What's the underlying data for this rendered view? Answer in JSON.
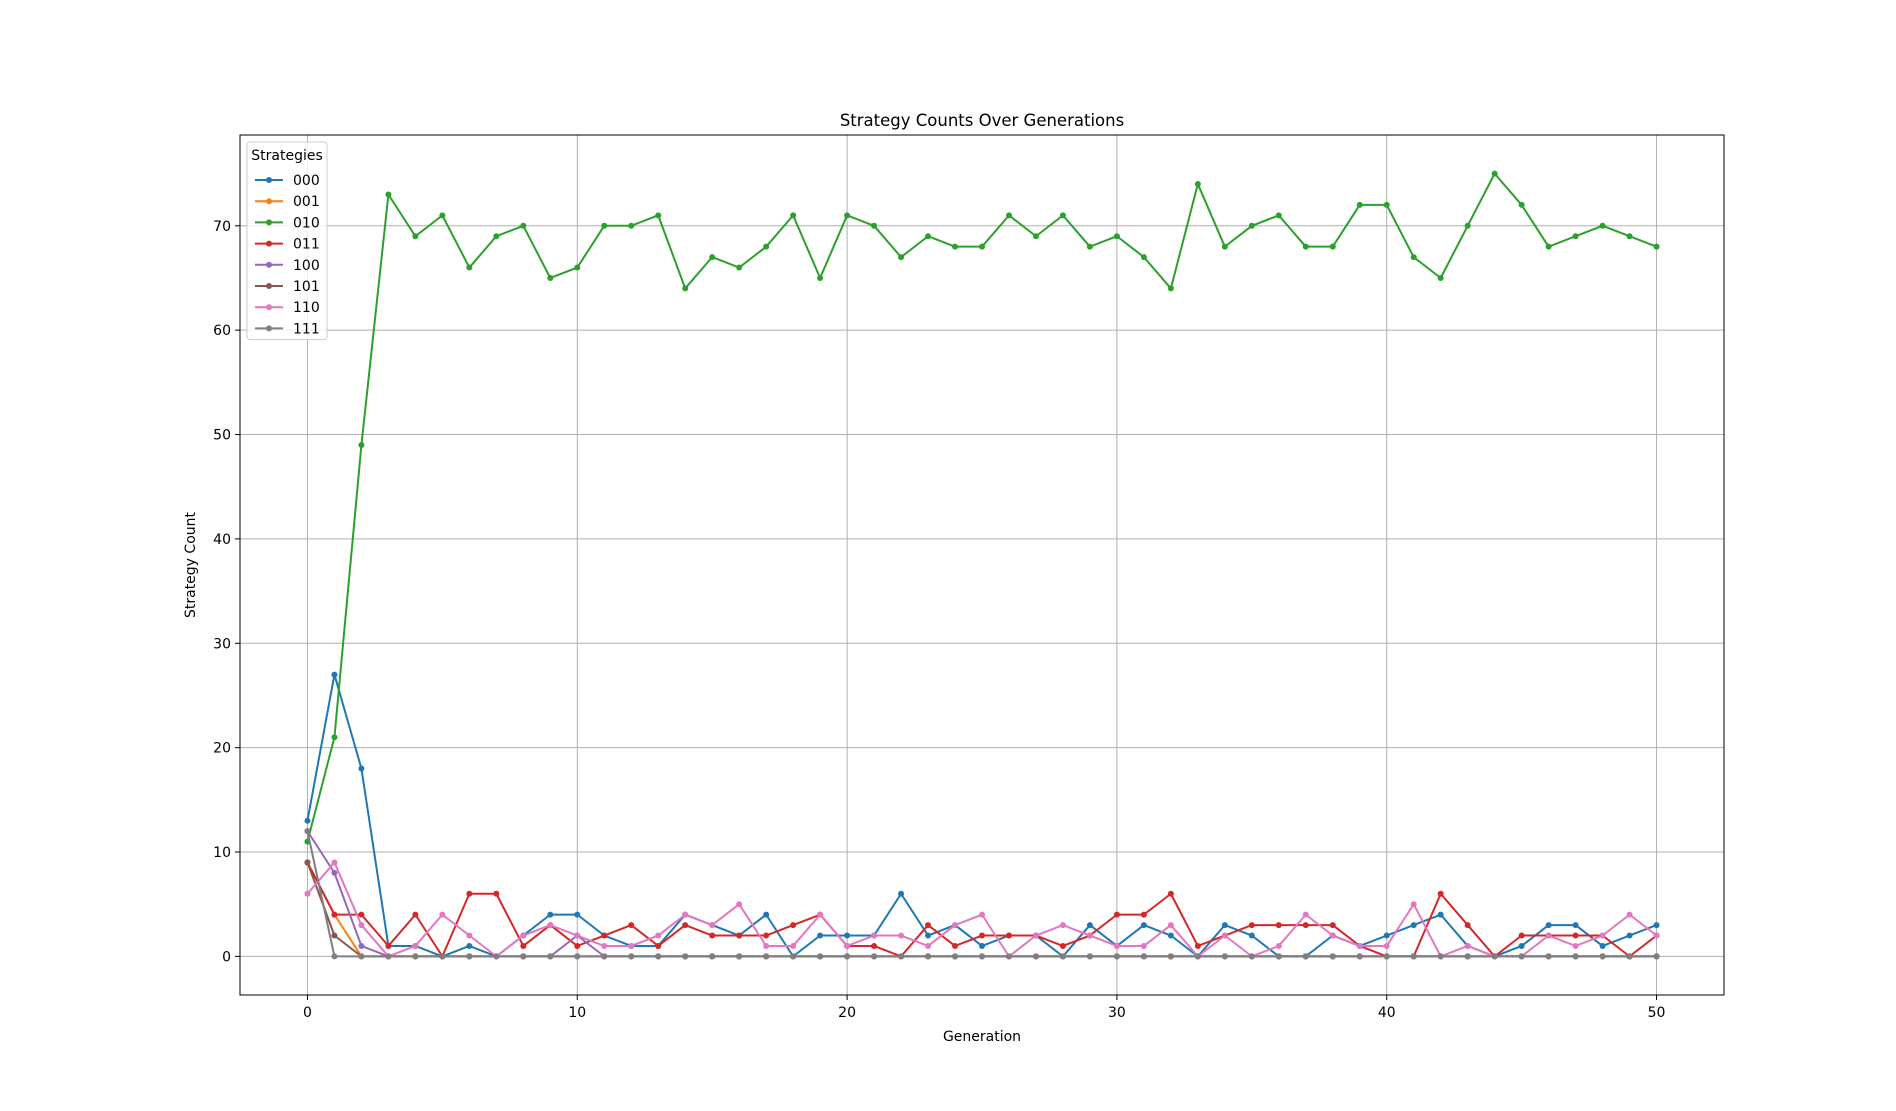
{
  "chart_data": {
    "type": "line",
    "title": "Strategy Counts Over Generations",
    "xlabel": "Generation",
    "ylabel": "Strategy Count",
    "xlim": [
      -2.5,
      52.5
    ],
    "ylim": [
      -3.7,
      78.7
    ],
    "xticks": [
      0,
      10,
      20,
      30,
      40,
      50
    ],
    "yticks": [
      0,
      10,
      20,
      30,
      40,
      50,
      60,
      70
    ],
    "grid": true,
    "legend": {
      "title": "Strategies",
      "placement": "top-left"
    },
    "x": [
      0,
      1,
      2,
      3,
      4,
      5,
      6,
      7,
      8,
      9,
      10,
      11,
      12,
      13,
      14,
      15,
      16,
      17,
      18,
      19,
      20,
      21,
      22,
      23,
      24,
      25,
      26,
      27,
      28,
      29,
      30,
      31,
      32,
      33,
      34,
      35,
      36,
      37,
      38,
      39,
      40,
      41,
      42,
      43,
      44,
      45,
      46,
      47,
      48,
      49,
      50
    ],
    "series": [
      {
        "name": "000",
        "color": "#1f77b4",
        "values": [
          13,
          27,
          18,
          1,
          1,
          0,
          1,
          0,
          2,
          4,
          4,
          2,
          1,
          1,
          4,
          3,
          2,
          4,
          0,
          2,
          2,
          2,
          6,
          2,
          3,
          1,
          2,
          2,
          0,
          3,
          1,
          3,
          2,
          0,
          3,
          2,
          0,
          0,
          2,
          1,
          2,
          3,
          4,
          1,
          0,
          1,
          3,
          3,
          1,
          2,
          3
        ]
      },
      {
        "name": "001",
        "color": "#ff7f0e",
        "values": [
          9,
          4,
          0,
          0,
          0,
          0,
          0,
          0,
          0,
          0,
          0,
          0,
          0,
          0,
          0,
          0,
          0,
          0,
          0,
          0,
          0,
          0,
          0,
          0,
          0,
          0,
          0,
          0,
          0,
          0,
          0,
          0,
          0,
          0,
          0,
          0,
          0,
          0,
          0,
          0,
          0,
          0,
          0,
          0,
          0,
          0,
          0,
          0,
          0,
          0,
          0
        ]
      },
      {
        "name": "010",
        "color": "#2ca02c",
        "values": [
          11,
          21,
          49,
          73,
          69,
          71,
          66,
          69,
          70,
          65,
          66,
          70,
          70,
          71,
          64,
          67,
          66,
          68,
          71,
          65,
          71,
          70,
          67,
          69,
          68,
          68,
          71,
          69,
          71,
          68,
          69,
          67,
          64,
          74,
          68,
          70,
          71,
          68,
          68,
          72,
          72,
          67,
          65,
          70,
          75,
          72,
          68,
          69,
          70,
          69,
          68
        ]
      },
      {
        "name": "011",
        "color": "#d62728",
        "values": [
          9,
          4,
          4,
          1,
          4,
          0,
          6,
          6,
          1,
          3,
          1,
          2,
          3,
          1,
          3,
          2,
          2,
          2,
          3,
          4,
          1,
          1,
          0,
          3,
          1,
          2,
          2,
          2,
          1,
          2,
          4,
          4,
          6,
          1,
          2,
          3,
          3,
          3,
          3,
          1,
          0,
          0,
          6,
          3,
          0,
          2,
          2,
          2,
          2,
          0,
          2
        ]
      },
      {
        "name": "100",
        "color": "#9467bd",
        "values": [
          12,
          8,
          1,
          0,
          0,
          0,
          0,
          0,
          0,
          0,
          2,
          0,
          0,
          0,
          0,
          0,
          0,
          0,
          0,
          0,
          0,
          0,
          0,
          0,
          0,
          0,
          0,
          0,
          0,
          0,
          0,
          0,
          0,
          0,
          0,
          0,
          0,
          0,
          0,
          0,
          0,
          0,
          0,
          0,
          0,
          0,
          0,
          0,
          0,
          0,
          0
        ]
      },
      {
        "name": "101",
        "color": "#8c564b",
        "values": [
          9,
          2,
          0,
          0,
          0,
          0,
          0,
          0,
          0,
          0,
          0,
          0,
          0,
          0,
          0,
          0,
          0,
          0,
          0,
          0,
          0,
          0,
          0,
          0,
          0,
          0,
          0,
          0,
          0,
          0,
          0,
          0,
          0,
          0,
          0,
          0,
          0,
          0,
          0,
          0,
          0,
          0,
          0,
          0,
          0,
          0,
          0,
          0,
          0,
          0,
          0
        ]
      },
      {
        "name": "110",
        "color": "#e377c2",
        "values": [
          6,
          9,
          3,
          0,
          1,
          4,
          2,
          0,
          2,
          3,
          2,
          1,
          1,
          2,
          4,
          3,
          5,
          1,
          1,
          4,
          1,
          2,
          2,
          1,
          3,
          4,
          0,
          2,
          3,
          2,
          1,
          1,
          3,
          0,
          2,
          0,
          1,
          4,
          2,
          1,
          1,
          5,
          0,
          1,
          0,
          0,
          2,
          1,
          2,
          4,
          2
        ]
      },
      {
        "name": "111",
        "color": "#7f7f7f",
        "values": [
          12,
          0,
          0,
          0,
          0,
          0,
          0,
          0,
          0,
          0,
          0,
          0,
          0,
          0,
          0,
          0,
          0,
          0,
          0,
          0,
          0,
          0,
          0,
          0,
          0,
          0,
          0,
          0,
          0,
          0,
          0,
          0,
          0,
          0,
          0,
          0,
          0,
          0,
          0,
          0,
          0,
          0,
          0,
          0,
          0,
          0,
          0,
          0,
          0,
          0,
          0
        ]
      }
    ]
  }
}
